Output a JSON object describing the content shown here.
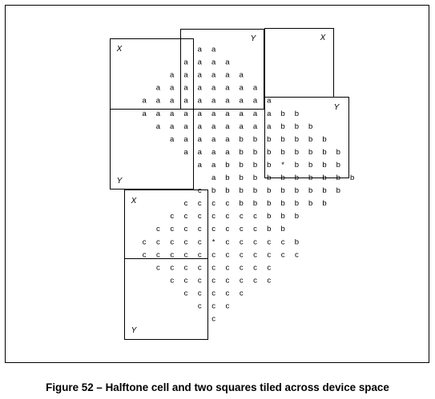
{
  "figure": {
    "caption": "Figure 52 –  Halftone cell and two squares tiled across device space",
    "corner_labels": [
      "X",
      "Y",
      "X",
      "Y",
      "Y",
      "X",
      "Y"
    ],
    "cells": {
      "a": "a",
      "b": "b",
      "c": "c",
      "star": "*"
    },
    "grid_rows": [
      "......aa........",
      ".....aaaa.......",
      "....aaaaaa......",
      "...aaaaaaaa.....",
      "..aaaaaaaaaa....",
      "..aaaaaaaaaabb..",
      "...aaaaaaaaabbb.",
      "....aaaaabbbbbbb",
      ".....aaaabbbbbbbb",
      "......aabbbb*bbbb",
      ".......abbbbbbbbbb",
      "......cbbbbbbbbbb",
      ".....ccccbbbbbbb",
      "....cccccccbbb..",
      "...ccccccccbb...",
      "..ccccc*cccccb..",
      "..cccccccccccc..",
      "...ccccccccc....",
      "....cccccccc....",
      ".....ccccc......",
      "......ccc.......",
      ".......c........"
    ]
  }
}
